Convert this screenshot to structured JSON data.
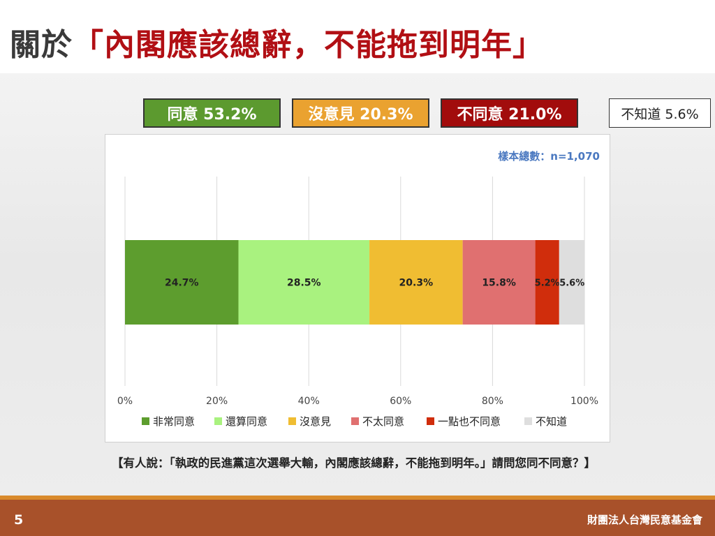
{
  "title": {
    "prefix": "關於",
    "quoted": "「內閣應該總辭，不能拖到明年」"
  },
  "summary": {
    "agree": "同意 53.2%",
    "neutral": "沒意見 20.3%",
    "disagree": "不同意 21.0%",
    "unknown": "不知道 5.6%"
  },
  "sample_size": "樣本總數：n=1,070",
  "question": "【有人說：「執政的民進黨這次選舉大輸，內閣應該總辭，不能拖到明年。」請問您同不同意？】",
  "footer": {
    "page_number": "5",
    "organization": "財團法人台灣民意基金會"
  },
  "chart_data": {
    "type": "bar",
    "orientation": "horizontal-stacked-100",
    "xlim": [
      0,
      100
    ],
    "x_ticks": [
      "0%",
      "20%",
      "40%",
      "60%",
      "80%",
      "100%"
    ],
    "grid": true,
    "legend_position": "bottom",
    "series": [
      {
        "name": "非常同意",
        "value": 24.7,
        "label": "24.7%",
        "color": "#5d9d2e"
      },
      {
        "name": "還算同意",
        "value": 28.5,
        "label": "28.5%",
        "color": "#a9f27f"
      },
      {
        "name": "沒意見",
        "value": 20.3,
        "label": "20.3%",
        "color": "#f0bd32"
      },
      {
        "name": "不太同意",
        "value": 15.8,
        "label": "15.8%",
        "color": "#e07070"
      },
      {
        "name": "一點也不同意",
        "value": 5.2,
        "label": "5.2%",
        "color": "#d02d0c"
      },
      {
        "name": "不知道",
        "value": 5.6,
        "label": "5.6%",
        "color": "#dedede"
      }
    ]
  }
}
